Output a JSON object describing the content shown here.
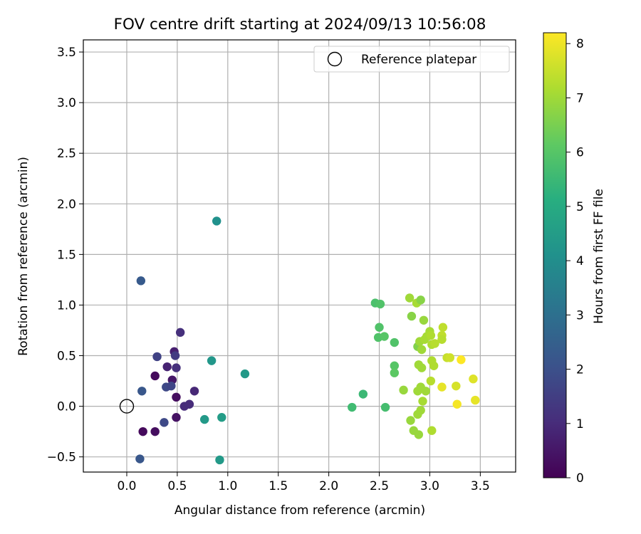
{
  "chart_data": {
    "type": "scatter",
    "title": "FOV centre drift starting at 2024/09/13 10:56:08",
    "xlabel": "Angular distance from reference (arcmin)",
    "ylabel": "Rotation from reference (arcmin)",
    "xlim": [
      -0.43,
      3.85
    ],
    "ylim": [
      -0.65,
      3.62
    ],
    "xticks": [
      "0.0",
      "0.5",
      "1.0",
      "1.5",
      "2.0",
      "2.5",
      "3.0",
      "3.5"
    ],
    "xtick_values": [
      0,
      0.5,
      1,
      1.5,
      2,
      2.5,
      3,
      3.5
    ],
    "yticks": [
      "−0.5",
      "0.0",
      "0.5",
      "1.0",
      "1.5",
      "2.0",
      "2.5",
      "3.0",
      "3.5"
    ],
    "ytick_values": [
      -0.5,
      0,
      0.5,
      1,
      1.5,
      2,
      2.5,
      3,
      3.5
    ],
    "grid": true,
    "legend": {
      "placement": "top-right",
      "label": "Reference platepar",
      "marker": "open-circle"
    },
    "reference_point": {
      "x": 0.0,
      "y": 0.0
    },
    "colorbar": {
      "label": "Hours from first FF file",
      "colormap": "viridis",
      "range": [
        0,
        8.2
      ],
      "ticks": [
        "0",
        "1",
        "2",
        "3",
        "4",
        "5",
        "6",
        "7",
        "8"
      ],
      "tick_values": [
        0,
        1,
        2,
        3,
        4,
        5,
        6,
        7,
        8
      ]
    },
    "points": [
      {
        "x": 0.16,
        "y": -0.25,
        "h": 0.2
      },
      {
        "x": 0.28,
        "y": -0.25,
        "h": 0.3
      },
      {
        "x": 0.28,
        "y": 0.3,
        "h": 0.2
      },
      {
        "x": 0.49,
        "y": 0.09,
        "h": 0.3
      },
      {
        "x": 0.49,
        "y": -0.11,
        "h": 0.4
      },
      {
        "x": 0.45,
        "y": 0.26,
        "h": 0.5
      },
      {
        "x": 0.4,
        "y": 0.39,
        "h": 0.8
      },
      {
        "x": 0.49,
        "y": 0.38,
        "h": 1.1
      },
      {
        "x": 0.47,
        "y": 0.54,
        "h": 0.7
      },
      {
        "x": 0.48,
        "y": 0.5,
        "h": 1.4
      },
      {
        "x": 0.53,
        "y": 0.73,
        "h": 1.1
      },
      {
        "x": 0.57,
        "y": 0.0,
        "h": 1.0
      },
      {
        "x": 0.62,
        "y": 0.02,
        "h": 1.0
      },
      {
        "x": 0.67,
        "y": 0.15,
        "h": 0.9
      },
      {
        "x": 0.3,
        "y": 0.49,
        "h": 1.6
      },
      {
        "x": 0.39,
        "y": 0.19,
        "h": 1.8
      },
      {
        "x": 0.44,
        "y": 0.2,
        "h": 1.7
      },
      {
        "x": 0.37,
        "y": -0.16,
        "h": 1.8
      },
      {
        "x": 0.15,
        "y": 0.15,
        "h": 2.2
      },
      {
        "x": 0.13,
        "y": -0.52,
        "h": 2.2
      },
      {
        "x": 0.14,
        "y": 1.24,
        "h": 2.3
      },
      {
        "x": 0.89,
        "y": 1.83,
        "h": 4.1
      },
      {
        "x": 0.84,
        "y": 0.45,
        "h": 4.3
      },
      {
        "x": 0.77,
        "y": -0.13,
        "h": 4.4
      },
      {
        "x": 0.94,
        "y": -0.11,
        "h": 4.5
      },
      {
        "x": 0.92,
        "y": -0.53,
        "h": 4.4
      },
      {
        "x": 1.17,
        "y": 0.32,
        "h": 4.4
      },
      {
        "x": 2.23,
        "y": -0.01,
        "h": 5.6
      },
      {
        "x": 2.34,
        "y": 0.12,
        "h": 5.5
      },
      {
        "x": 2.56,
        "y": -0.01,
        "h": 5.7
      },
      {
        "x": 2.46,
        "y": 1.02,
        "h": 5.8
      },
      {
        "x": 2.51,
        "y": 1.01,
        "h": 5.9
      },
      {
        "x": 2.5,
        "y": 0.78,
        "h": 5.9
      },
      {
        "x": 2.49,
        "y": 0.68,
        "h": 5.9
      },
      {
        "x": 2.55,
        "y": 0.69,
        "h": 6.0
      },
      {
        "x": 2.65,
        "y": 0.63,
        "h": 5.9
      },
      {
        "x": 2.65,
        "y": 0.4,
        "h": 6.0
      },
      {
        "x": 2.65,
        "y": 0.33,
        "h": 6.1
      },
      {
        "x": 2.74,
        "y": 0.16,
        "h": 6.9
      },
      {
        "x": 2.8,
        "y": 1.07,
        "h": 7.0
      },
      {
        "x": 2.82,
        "y": 0.89,
        "h": 6.7
      },
      {
        "x": 2.87,
        "y": 1.02,
        "h": 7.1
      },
      {
        "x": 2.91,
        "y": 1.05,
        "h": 6.7
      },
      {
        "x": 2.94,
        "y": 0.85,
        "h": 6.9
      },
      {
        "x": 2.88,
        "y": 0.59,
        "h": 6.6
      },
      {
        "x": 2.9,
        "y": 0.64,
        "h": 7.0
      },
      {
        "x": 2.92,
        "y": 0.56,
        "h": 7.0
      },
      {
        "x": 2.95,
        "y": 0.66,
        "h": 7.1
      },
      {
        "x": 2.97,
        "y": 0.69,
        "h": 7.1
      },
      {
        "x": 3.0,
        "y": 0.74,
        "h": 7.1
      },
      {
        "x": 3.01,
        "y": 0.7,
        "h": 7.2
      },
      {
        "x": 3.02,
        "y": 0.61,
        "h": 7.2
      },
      {
        "x": 3.05,
        "y": 0.62,
        "h": 7.3
      },
      {
        "x": 3.13,
        "y": 0.78,
        "h": 7.4
      },
      {
        "x": 3.12,
        "y": 0.7,
        "h": 7.4
      },
      {
        "x": 3.12,
        "y": 0.66,
        "h": 7.3
      },
      {
        "x": 3.17,
        "y": 0.48,
        "h": 7.5
      },
      {
        "x": 3.2,
        "y": 0.48,
        "h": 7.6
      },
      {
        "x": 3.02,
        "y": 0.45,
        "h": 7.2
      },
      {
        "x": 3.04,
        "y": 0.4,
        "h": 7.2
      },
      {
        "x": 2.89,
        "y": 0.41,
        "h": 7.0
      },
      {
        "x": 2.92,
        "y": 0.38,
        "h": 7.0
      },
      {
        "x": 2.88,
        "y": 0.15,
        "h": 7.0
      },
      {
        "x": 2.91,
        "y": 0.19,
        "h": 7.0
      },
      {
        "x": 2.96,
        "y": 0.15,
        "h": 7.0
      },
      {
        "x": 3.01,
        "y": 0.25,
        "h": 7.3
      },
      {
        "x": 2.93,
        "y": 0.05,
        "h": 7.1
      },
      {
        "x": 2.88,
        "y": -0.08,
        "h": 7.0
      },
      {
        "x": 2.91,
        "y": -0.04,
        "h": 7.0
      },
      {
        "x": 2.81,
        "y": -0.14,
        "h": 6.9
      },
      {
        "x": 2.84,
        "y": -0.24,
        "h": 6.9
      },
      {
        "x": 2.89,
        "y": -0.28,
        "h": 6.9
      },
      {
        "x": 3.02,
        "y": -0.24,
        "h": 7.2
      },
      {
        "x": 3.12,
        "y": 0.19,
        "h": 7.9
      },
      {
        "x": 3.26,
        "y": 0.2,
        "h": 7.7
      },
      {
        "x": 3.27,
        "y": 0.02,
        "h": 8.1
      },
      {
        "x": 3.31,
        "y": 0.46,
        "h": 8.2
      },
      {
        "x": 3.43,
        "y": 0.27,
        "h": 7.8
      },
      {
        "x": 3.45,
        "y": 0.06,
        "h": 7.9
      }
    ]
  }
}
